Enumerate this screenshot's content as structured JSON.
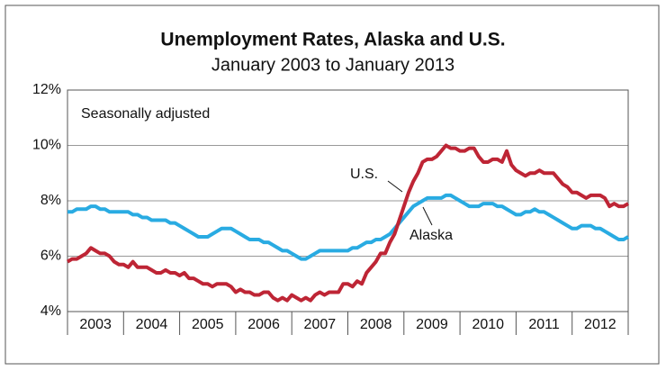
{
  "chart_data": {
    "type": "line",
    "title": "Unemployment Rates, Alaska and U.S.",
    "subtitle": "January 2003 to January 2013",
    "annotations": [
      "Seasonally adjusted",
      "U.S.",
      "Alaska"
    ],
    "categories": [
      null,
      null,
      null,
      null,
      null,
      null,
      "2003",
      null,
      null,
      null,
      null,
      null,
      null,
      null,
      null,
      null,
      null,
      null,
      "2004",
      null,
      null,
      null,
      null,
      null,
      null,
      null,
      null,
      null,
      null,
      null,
      "2005",
      null,
      null,
      null,
      null,
      null,
      null,
      null,
      null,
      null,
      null,
      null,
      "2006",
      null,
      null,
      null,
      null,
      null,
      null,
      null,
      null,
      null,
      null,
      null,
      "2007",
      null,
      null,
      null,
      null,
      null,
      null,
      null,
      null,
      null,
      null,
      null,
      "2008",
      null,
      null,
      null,
      null,
      null,
      null,
      null,
      null,
      null,
      null,
      null,
      "2009",
      null,
      null,
      null,
      null,
      null,
      null,
      null,
      null,
      null,
      null,
      null,
      "2010",
      null,
      null,
      null,
      null,
      null,
      null,
      null,
      null,
      null,
      null,
      null,
      "2011",
      null,
      null,
      null,
      null,
      null,
      null,
      null,
      null,
      null,
      null,
      null,
      "2012",
      null,
      null,
      null,
      null,
      null,
      null
    ],
    "series": [
      {
        "name": "U.S.",
        "color": "#be2535",
        "values": [
          5.8,
          5.9,
          5.9,
          6.0,
          6.1,
          6.3,
          6.2,
          6.1,
          6.1,
          6.0,
          5.8,
          5.7,
          5.7,
          5.6,
          5.8,
          5.6,
          5.6,
          5.6,
          5.5,
          5.4,
          5.4,
          5.5,
          5.4,
          5.4,
          5.3,
          5.4,
          5.2,
          5.2,
          5.1,
          5.0,
          5.0,
          4.9,
          5.0,
          5.0,
          5.0,
          4.9,
          4.7,
          4.8,
          4.7,
          4.7,
          4.6,
          4.6,
          4.7,
          4.7,
          4.5,
          4.4,
          4.5,
          4.4,
          4.6,
          4.5,
          4.4,
          4.5,
          4.4,
          4.6,
          4.7,
          4.6,
          4.7,
          4.7,
          4.7,
          5.0,
          5.0,
          4.9,
          5.1,
          5.0,
          5.4,
          5.6,
          5.8,
          6.1,
          6.1,
          6.5,
          6.8,
          7.3,
          7.8,
          8.3,
          8.7,
          9.0,
          9.4,
          9.5,
          9.5,
          9.6,
          9.8,
          10.0,
          9.9,
          9.9,
          9.8,
          9.8,
          9.9,
          9.9,
          9.6,
          9.4,
          9.4,
          9.5,
          9.5,
          9.4,
          9.8,
          9.3,
          9.1,
          9.0,
          8.9,
          9.0,
          9.0,
          9.1,
          9.0,
          9.0,
          9.0,
          8.8,
          8.6,
          8.5,
          8.3,
          8.3,
          8.2,
          8.1,
          8.2,
          8.2,
          8.2,
          8.1,
          7.8,
          7.9,
          7.8,
          7.8,
          7.9
        ]
      },
      {
        "name": "Alaska",
        "color": "#29abe2",
        "values": [
          7.6,
          7.6,
          7.7,
          7.7,
          7.7,
          7.8,
          7.8,
          7.7,
          7.7,
          7.6,
          7.6,
          7.6,
          7.6,
          7.6,
          7.5,
          7.5,
          7.4,
          7.4,
          7.3,
          7.3,
          7.3,
          7.3,
          7.2,
          7.2,
          7.1,
          7.0,
          6.9,
          6.8,
          6.7,
          6.7,
          6.7,
          6.8,
          6.9,
          7.0,
          7.0,
          7.0,
          6.9,
          6.8,
          6.7,
          6.6,
          6.6,
          6.6,
          6.5,
          6.5,
          6.4,
          6.3,
          6.2,
          6.2,
          6.1,
          6.0,
          5.9,
          5.9,
          6.0,
          6.1,
          6.2,
          6.2,
          6.2,
          6.2,
          6.2,
          6.2,
          6.2,
          6.3,
          6.3,
          6.4,
          6.5,
          6.5,
          6.6,
          6.6,
          6.7,
          6.8,
          7.0,
          7.2,
          7.4,
          7.6,
          7.8,
          7.9,
          8.0,
          8.1,
          8.1,
          8.1,
          8.1,
          8.2,
          8.2,
          8.1,
          8.0,
          7.9,
          7.8,
          7.8,
          7.8,
          7.9,
          7.9,
          7.9,
          7.8,
          7.8,
          7.7,
          7.6,
          7.5,
          7.5,
          7.6,
          7.6,
          7.7,
          7.6,
          7.6,
          7.5,
          7.4,
          7.3,
          7.2,
          7.1,
          7.0,
          7.0,
          7.1,
          7.1,
          7.1,
          7.0,
          7.0,
          6.9,
          6.8,
          6.7,
          6.6,
          6.6,
          6.7
        ]
      }
    ],
    "ylim": [
      4,
      12
    ],
    "yticks": [
      {
        "value": 4,
        "label": "4%"
      },
      {
        "value": 6,
        "label": "6%"
      },
      {
        "value": 8,
        "label": "8%"
      },
      {
        "value": 10,
        "label": "10%"
      },
      {
        "value": 12,
        "label": "12%"
      }
    ],
    "grid": true
  }
}
